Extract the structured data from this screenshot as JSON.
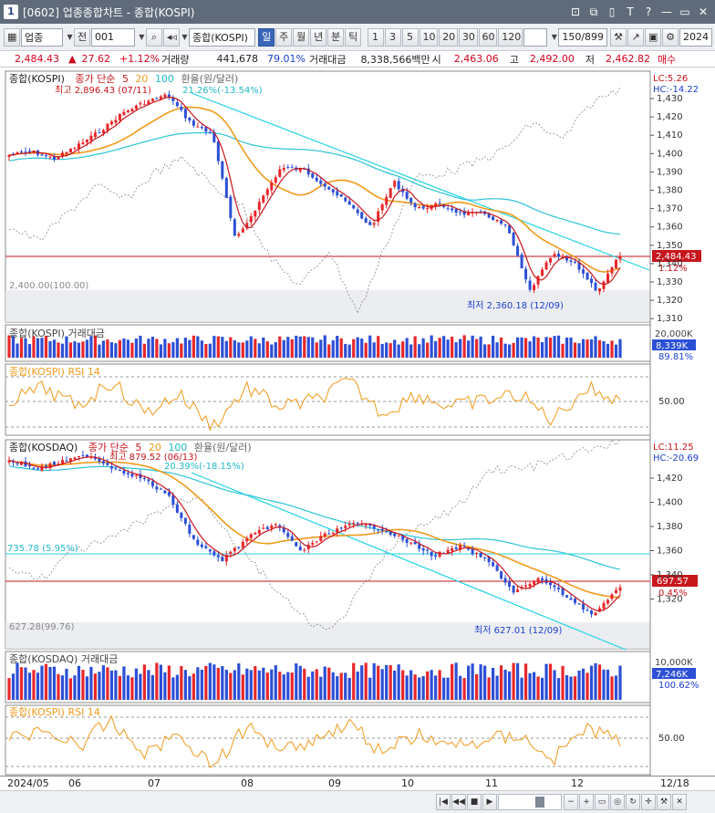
{
  "window": {
    "code": "1",
    "title": "[0602] 업종종합차트 - 종합(KOSPI)",
    "buttons": [
      "⊡",
      "⧉",
      "▯",
      "T",
      "?",
      "—",
      "▭",
      "✕"
    ]
  },
  "toolbar": {
    "market": "업종",
    "prev": "전",
    "code": "001",
    "name": "종합(KOSPI)",
    "periods": [
      "일",
      "주",
      "월",
      "년",
      "분",
      "틱"
    ],
    "selected_period": "일",
    "intervals": [
      "1",
      "3",
      "5",
      "10",
      "20",
      "30",
      "60",
      "120"
    ],
    "count": "150/899",
    "date": "2024"
  },
  "info": {
    "price": "2,484.43",
    "arrow": "▲",
    "change": "27.62",
    "change_pct": "+1.12%",
    "volume_label": "거래량",
    "volume": "441,678",
    "volume_ratio": "79.01%",
    "amount_label": "거래대금",
    "amount": "8,338,566백만",
    "open_label": "시",
    "open": "2,463.06",
    "high_label": "고",
    "high": "2,492.00",
    "low_label": "저",
    "low": "2,462.82",
    "trade": "매수"
  },
  "kospi_panel": {
    "title_parts": [
      "종합(KOSPI)",
      "종가 단순",
      "5",
      "20",
      "100",
      "환율(원/달러)"
    ],
    "high_note": "최고 2,896.43 (07/11)",
    "high_pct": "21.26%(-13.54%)",
    "low_note": "최저 2,360.18 (12/09)",
    "base_note": "2,400.00(100.00)",
    "lc": "LC:5.26",
    "hc": "HC:-14.22",
    "current_price": "2,484.43",
    "current_pct": "1.12%",
    "y_ticks": [
      "1,430",
      "1,420",
      "1,410",
      "1,400",
      "1,390",
      "1,380",
      "1,370",
      "1,360",
      "1,350",
      "1,340",
      "1,330",
      "1,320",
      "1,310"
    ]
  },
  "kospi_amount": {
    "title": "종합(KOSPI) 거래대금",
    "top": "20,000K",
    "current": "8,339K",
    "pct": "89.81%"
  },
  "kospi_rsi": {
    "title": "종합(KOSPI) RSI 14",
    "level": "50.00"
  },
  "kosdaq_panel": {
    "title_parts": [
      "종합(KOSDAQ)",
      "종가 단순",
      "5",
      "20",
      "100",
      "환율(원/달러)"
    ],
    "high_note": "최고 879.52 (06/13)",
    "high_pct": "20.39%(-18.15%)",
    "low_note": "최저 627.01 (12/09)",
    "base_note": "627.28(99.76)",
    "line_note": "735.78 (5.95%)",
    "lc": "LC:11.25",
    "hc": "HC:-20.69",
    "current_price": "697.57",
    "current_pct": "0.45%",
    "y_ticks": [
      "1,420",
      "1,400",
      "1,380",
      "1,360",
      "1,340",
      "1,320"
    ]
  },
  "kosdaq_amount": {
    "title": "종합(KOSDAQ) 거래대금",
    "top": "10,000K",
    "current": "7,246K",
    "pct": "100.62%"
  },
  "kosdaq_rsi": {
    "title": "종합(KOSPI) RSI 14",
    "level": "50.00"
  },
  "x_axis": [
    "2024/05",
    "06",
    "07",
    "08",
    "09",
    "10",
    "11",
    "12",
    "12/18"
  ],
  "colors": {
    "up": "#e8262a",
    "down": "#2b4fd6",
    "ma5": "#c8161d",
    "ma20": "#f09a1a",
    "ma100": "#2cc4d6",
    "fx": "#888888",
    "trend": "#22d3e3",
    "hline": "#c8161d"
  }
}
